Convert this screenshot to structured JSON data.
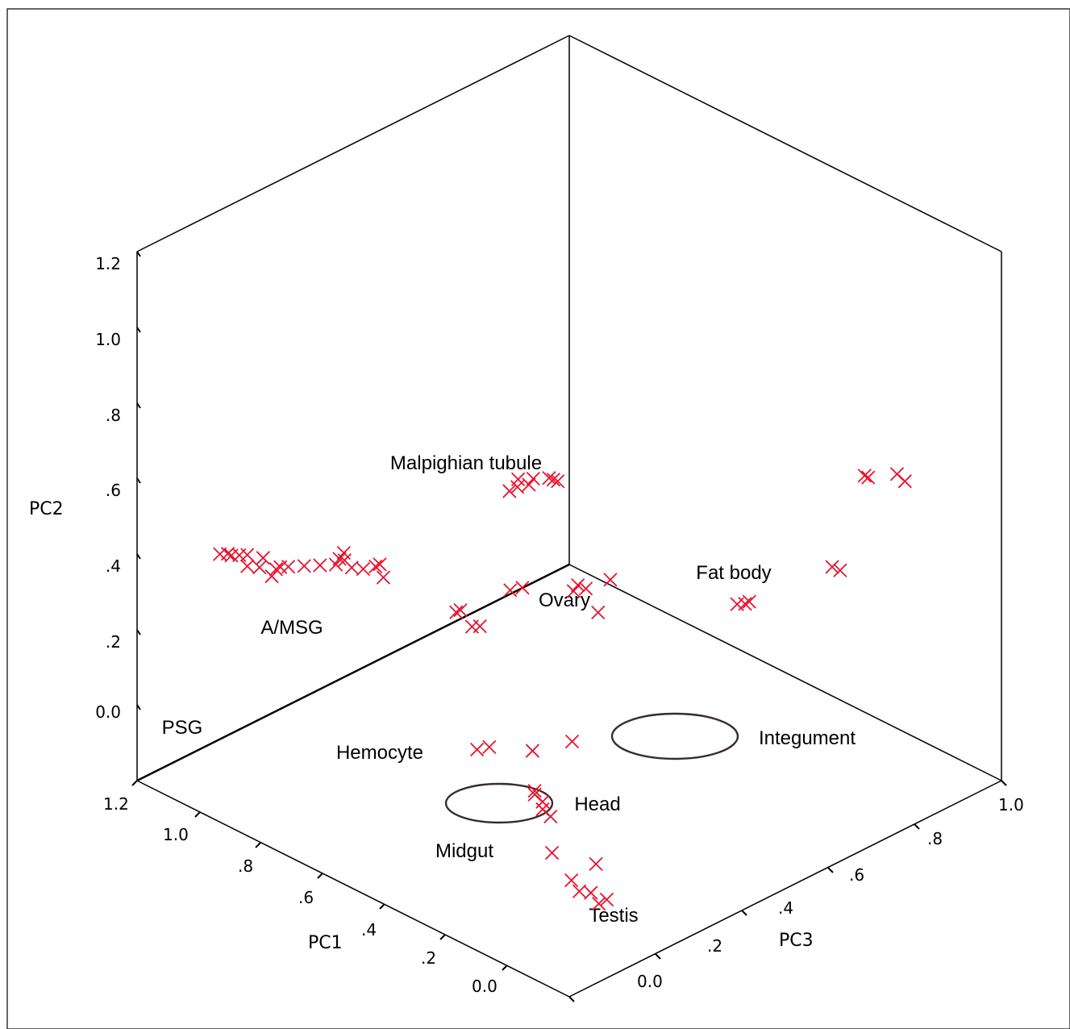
{
  "chart_data": {
    "type": "scatter",
    "projection": "3d",
    "marker": "x",
    "marker_color": "#e8142e",
    "axes": {
      "pc1": {
        "label": "PC1",
        "ticks": [
          "1.2",
          "1.0",
          ".8",
          ".6",
          ".4",
          ".2",
          "0.0"
        ]
      },
      "pc2": {
        "label": "PC2",
        "ticks": [
          "1.2",
          "1.0",
          ".8",
          ".6",
          ".4",
          ".2",
          "0.0"
        ]
      },
      "pc3": {
        "label": "PC3",
        "ticks": [
          "1.0",
          ".8",
          ".6",
          ".4",
          ".2",
          "0.0"
        ]
      }
    },
    "groups": [
      {
        "label": "Malpighian tubule",
        "ring_color": "#000000",
        "points": [
          {
            "pc1": 0.31,
            "pc3": 0.12,
            "pc2": 0.55
          },
          {
            "pc1": 0.3,
            "pc3": 0.13,
            "pc2": 0.56
          },
          {
            "pc1": 0.31,
            "pc3": 0.14,
            "pc2": 0.57
          },
          {
            "pc1": 0.28,
            "pc3": 0.14,
            "pc2": 0.57
          },
          {
            "pc1": 0.28,
            "pc3": 0.15,
            "pc2": 0.58
          },
          {
            "pc1": 0.26,
            "pc3": 0.17,
            "pc2": 0.58
          },
          {
            "pc1": 0.26,
            "pc3": 0.18,
            "pc2": 0.57
          },
          {
            "pc1": 0.26,
            "pc3": 0.19,
            "pc2": 0.56
          }
        ]
      },
      {
        "label": "Fat body",
        "ring_color": "#000000",
        "points": [
          {
            "pc1": 0.08,
            "pc3": 0.75,
            "pc2": 0.34
          },
          {
            "pc1": 0.07,
            "pc3": 0.75,
            "pc2": 0.34
          },
          {
            "pc1": 0.05,
            "pc3": 0.8,
            "pc2": 0.33
          },
          {
            "pc1": 0.04,
            "pc3": 0.81,
            "pc2": 0.31
          }
        ]
      },
      {
        "label": "Ovary",
        "ring_color": "#000000",
        "points": [
          {
            "pc1": 0.3,
            "pc3": 0.26,
            "pc2": 0.21
          },
          {
            "pc1": 0.3,
            "pc3": 0.27,
            "pc2": 0.22
          },
          {
            "pc1": 0.29,
            "pc3": 0.28,
            "pc2": 0.21
          },
          {
            "pc1": 0.27,
            "pc3": 0.32,
            "pc2": 0.22
          },
          {
            "pc1": 0.28,
            "pc3": 0.3,
            "pc2": 0.14
          },
          {
            "pc1": 0.38,
            "pc3": 0.18,
            "pc2": 0.22
          },
          {
            "pc1": 0.37,
            "pc3": 0.2,
            "pc2": 0.22
          }
        ]
      },
      {
        "label": "A/MSG",
        "ring_color": "#000000",
        "points": [
          {
            "pc1": 0.91,
            "pc3": 0.08,
            "pc2": 0.08
          },
          {
            "pc1": 0.91,
            "pc3": 0.09,
            "pc2": 0.08
          },
          {
            "pc1": 0.9,
            "pc3": 0.1,
            "pc2": 0.08
          },
          {
            "pc1": 0.88,
            "pc3": 0.12,
            "pc2": 0.08
          },
          {
            "pc1": 0.86,
            "pc3": 0.14,
            "pc2": 0.08
          },
          {
            "pc1": 0.84,
            "pc3": 0.16,
            "pc2": 0.08
          },
          {
            "pc1": 0.84,
            "pc3": 0.18,
            "pc2": 0.08
          },
          {
            "pc1": 0.83,
            "pc3": 0.17,
            "pc2": 0.11
          },
          {
            "pc1": 0.83,
            "pc3": 0.16,
            "pc2": 0.1
          },
          {
            "pc1": 0.82,
            "pc3": 0.18,
            "pc2": 0.07
          },
          {
            "pc1": 0.8,
            "pc3": 0.19,
            "pc2": 0.07
          },
          {
            "pc1": 0.79,
            "pc3": 0.21,
            "pc2": 0.07
          },
          {
            "pc1": 0.79,
            "pc3": 0.22,
            "pc2": 0.07
          },
          {
            "pc1": 0.78,
            "pc3": 0.22,
            "pc2": 0.04
          }
        ]
      },
      {
        "label": "PSG",
        "ring_color": "#000000",
        "points": [
          {
            "pc1": 1.03,
            "pc3": 0.05,
            "pc2": 0.08
          },
          {
            "pc1": 1.02,
            "pc3": 0.06,
            "pc2": 0.08
          },
          {
            "pc1": 1.01,
            "pc3": 0.06,
            "pc2": 0.08
          },
          {
            "pc1": 1.0,
            "pc3": 0.07,
            "pc2": 0.08
          },
          {
            "pc1": 0.99,
            "pc3": 0.08,
            "pc2": 0.08
          },
          {
            "pc1": 0.99,
            "pc3": 0.08,
            "pc2": 0.05
          },
          {
            "pc1": 0.97,
            "pc3": 0.1,
            "pc2": 0.07
          },
          {
            "pc1": 0.98,
            "pc3": 0.1,
            "pc2": 0.04
          },
          {
            "pc1": 0.97,
            "pc3": 0.12,
            "pc2": 0.01
          }
        ]
      },
      {
        "label": "Hemocyte",
        "ring_color": "#000000",
        "points": [
          {
            "pc1": 0.53,
            "pc3": 0.18,
            "pc2": 0.09
          },
          {
            "pc1": 0.53,
            "pc3": 0.19,
            "pc2": 0.09
          },
          {
            "pc1": 0.51,
            "pc3": 0.2,
            "pc2": 0.05
          },
          {
            "pc1": 0.5,
            "pc3": 0.21,
            "pc2": 0.05
          }
        ]
      },
      {
        "label": "Integument",
        "ring_color": "#3b2a33",
        "points": [
          {
            "pc1": 0.11,
            "pc3": 0.48,
            "pc2": 0.14
          },
          {
            "pc1": 0.1,
            "pc3": 0.49,
            "pc2": 0.14
          },
          {
            "pc1": 0.1,
            "pc3": 0.5,
            "pc2": 0.14
          },
          {
            "pc1": 0.05,
            "pc3": 0.65,
            "pc2": 0.17
          },
          {
            "pc1": 0.04,
            "pc3": 0.66,
            "pc2": 0.16
          }
        ]
      },
      {
        "label": "Head",
        "ring_color": "#3b2a33",
        "points": [
          {
            "pc1": 0.34,
            "pc3": 0.07,
            "pc2": -0.12
          },
          {
            "pc1": 0.33,
            "pc3": 0.09,
            "pc2": -0.12
          },
          {
            "pc1": 0.27,
            "pc3": 0.14,
            "pc2": -0.13
          },
          {
            "pc1": 0.22,
            "pc3": 0.19,
            "pc2": -0.11
          }
        ]
      },
      {
        "label": "Midgut",
        "ring_color": "#000000",
        "points": [
          {
            "pc1": 0.24,
            "pc3": 0.12,
            "pc2": -0.21
          },
          {
            "pc1": 0.24,
            "pc3": 0.12,
            "pc2": -0.22
          },
          {
            "pc1": 0.23,
            "pc3": 0.13,
            "pc2": -0.24
          },
          {
            "pc1": 0.23,
            "pc3": 0.13,
            "pc2": -0.26
          },
          {
            "pc1": 0.22,
            "pc3": 0.14,
            "pc2": -0.28
          }
        ]
      },
      {
        "label": "Testis",
        "ring_color": "#000000",
        "points": [
          {
            "pc1": 0.18,
            "pc3": 0.11,
            "pc2": -0.34
          },
          {
            "pc1": 0.15,
            "pc3": 0.13,
            "pc2": -0.41
          },
          {
            "pc1": 0.14,
            "pc3": 0.14,
            "pc2": -0.44
          },
          {
            "pc1": 0.12,
            "pc3": 0.15,
            "pc2": -0.44
          },
          {
            "pc1": 0.11,
            "pc3": 0.16,
            "pc2": -0.47
          },
          {
            "pc1": 0.1,
            "pc3": 0.17,
            "pc2": -0.46
          },
          {
            "pc1": 0.13,
            "pc3": 0.17,
            "pc2": -0.38
          }
        ]
      }
    ]
  }
}
